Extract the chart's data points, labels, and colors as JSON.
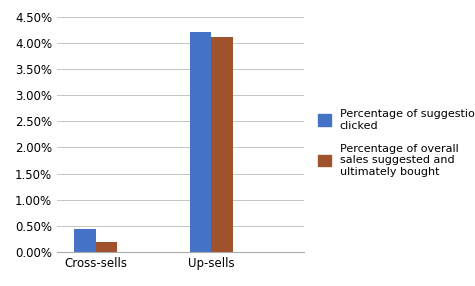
{
  "categories": [
    "Cross-sells",
    "Up-sells"
  ],
  "series": [
    {
      "label": "Percentage of suggestions\nclicked",
      "values": [
        0.0043,
        0.0422
      ],
      "color": "#4472C4"
    },
    {
      "label": "Percentage of overall\nsales suggested and\nultimately bought",
      "values": [
        0.0018,
        0.0412
      ],
      "color": "#A0522D"
    }
  ],
  "ylim": [
    0,
    0.045
  ],
  "yticks": [
    0.0,
    0.005,
    0.01,
    0.015,
    0.02,
    0.025,
    0.03,
    0.035,
    0.04,
    0.045
  ],
  "ytick_labels": [
    "0.00%",
    "0.50%",
    "1.00%",
    "1.50%",
    "2.00%",
    "2.50%",
    "3.00%",
    "3.50%",
    "4.00%",
    "4.50%"
  ],
  "bar_width": 0.28,
  "background_color": "#FFFFFF",
  "grid_color": "#BBBBBB",
  "legend_fontsize": 8.0,
  "tick_fontsize": 8.5,
  "x_positions": [
    0.5,
    2.0
  ],
  "xlim": [
    0,
    3.2
  ]
}
